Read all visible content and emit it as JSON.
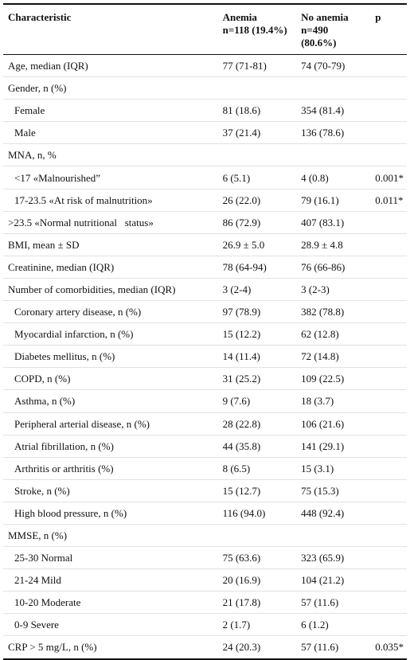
{
  "header": {
    "characteristic": "Characteristic",
    "anemia": [
      "Anemia",
      "n=118 (19.4%)"
    ],
    "no_anemia": [
      "No anemia",
      "n=490",
      "(80.6%)"
    ],
    "p": "p"
  },
  "rows": [
    {
      "label": "Age, median (IQR)",
      "anemia": "77 (71-81)",
      "no_anemia": "74 (70-79)"
    },
    {
      "label": "Gender, n (%)"
    },
    {
      "label": "Female",
      "indent": 1,
      "anemia": "81 (18.6)",
      "no_anemia": "354 (81.4)"
    },
    {
      "label": "Male",
      "indent": 1,
      "anemia": "37 (21.4)",
      "no_anemia": "136 (78.6)"
    },
    {
      "label": "MNA, n, %"
    },
    {
      "label": "<17 «Malnourished”",
      "indent": 1,
      "anemia": "6 (5.1)",
      "no_anemia": "4 (0.8)",
      "p": "0.001*"
    },
    {
      "label": "17-23.5 «At risk of malnutrition»",
      "indent": 1,
      "anemia": "26 (22.0)",
      "no_anemia": "79 (16.1)",
      "p": "0.011*"
    },
    {
      "label": ">23.5 «Normal nutritional   status»",
      "anemia": "86 (72.9)",
      "no_anemia": "407 (83.1)"
    },
    {
      "label": "BMI, mean ± SD",
      "anemia": "26.9 ± 5.0",
      "no_anemia": "28.9 ± 4.8"
    },
    {
      "label": "Creatinine, median (IQR)",
      "anemia": "78 (64-94)",
      "no_anemia": "76 (66-86)"
    },
    {
      "label": "Number of comorbidities, median (IQR)",
      "anemia": "3 (2-4)",
      "no_anemia": "3 (2-3)"
    },
    {
      "label": "Coronary artery disease, n (%)",
      "indent": 1,
      "anemia": "97 (78.9)",
      "no_anemia": "382 (78.8)"
    },
    {
      "label": "Myocardial infarction, n (%)",
      "indent": 1,
      "anemia": "15 (12.2)",
      "no_anemia": "62 (12.8)"
    },
    {
      "label": "Diabetes mellitus, n (%)",
      "indent": 1,
      "anemia": "14 (11.4)",
      "no_anemia": "72 (14.8)"
    },
    {
      "label": "COPD, n (%)",
      "indent": 1,
      "anemia": "31 (25.2)",
      "no_anemia": "109 (22.5)"
    },
    {
      "label": "Asthma, n (%)",
      "indent": 1,
      "anemia": "9 (7.6)",
      "no_anemia": "18 (3.7)"
    },
    {
      "label": "Peripheral arterial disease, n (%)",
      "indent": 1,
      "anemia": "28 (22.8)",
      "no_anemia": "106 (21.6)"
    },
    {
      "label": "Atrial fibrillation, n (%)",
      "indent": 1,
      "anemia": "44 (35.8)",
      "no_anemia": "141 (29.1)"
    },
    {
      "label": "Arthritis or arthritis (%)",
      "indent": 1,
      "anemia": "8 (6.5)",
      "no_anemia": "15 (3.1)"
    },
    {
      "label": "Stroke, n (%)",
      "indent": 1,
      "anemia": "15 (12.7)",
      "no_anemia": "75 (15.3)"
    },
    {
      "label": "High blood pressure, n (%)",
      "indent": 1,
      "anemia": "116 (94.0)",
      "no_anemia": "448 (92.4)"
    },
    {
      "label": "MMSE, n (%)"
    },
    {
      "label": "25-30 Normal",
      "indent": 1,
      "anemia": "75 (63.6)",
      "no_anemia": "323 (65.9)"
    },
    {
      "label": "21-24 Mild",
      "indent": 1,
      "anemia": "20 (16.9)",
      "no_anemia": "104 (21.2)"
    },
    {
      "label": "10-20 Moderate",
      "indent": 1,
      "anemia": "21 (17.8)",
      "no_anemia": "57 (11.6)"
    },
    {
      "label": "0-9 Severe",
      "indent": 1,
      "anemia": "2 (1.7)",
      "no_anemia": "6 (1.2)"
    },
    {
      "label": "CRP > 5 mg/L, n (%)",
      "anemia": "24 (20.3)",
      "no_anemia": "57 (11.6)",
      "p": "0.035*"
    }
  ]
}
